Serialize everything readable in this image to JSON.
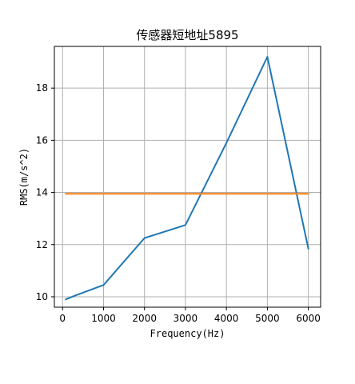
{
  "chart_data": {
    "type": "line",
    "title": "传感器短地址5895",
    "xlabel": "Frequency(Hz)",
    "ylabel": "RMS(m/s^2)",
    "xlim": [
      -200,
      6300
    ],
    "ylim": [
      9.6,
      19.6
    ],
    "xticks": [
      0,
      1000,
      2000,
      3000,
      4000,
      5000,
      6000
    ],
    "yticks": [
      10,
      12,
      14,
      16,
      18
    ],
    "grid": true,
    "series": [
      {
        "color": "#1f77b4",
        "points": [
          {
            "x": 80,
            "y": 9.9
          },
          {
            "x": 315,
            "y": 10.05
          },
          {
            "x": 1000,
            "y": 10.45
          },
          {
            "x": 2000,
            "y": 12.25
          },
          {
            "x": 3000,
            "y": 12.75
          },
          {
            "x": 4000,
            "y": 15.9
          },
          {
            "x": 5000,
            "y": 19.2
          },
          {
            "x": 6000,
            "y": 11.85
          }
        ]
      },
      {
        "color": "#ff7f0e",
        "points": [
          {
            "x": 80,
            "y": 13.95
          },
          {
            "x": 6000,
            "y": 13.95
          }
        ]
      }
    ]
  }
}
